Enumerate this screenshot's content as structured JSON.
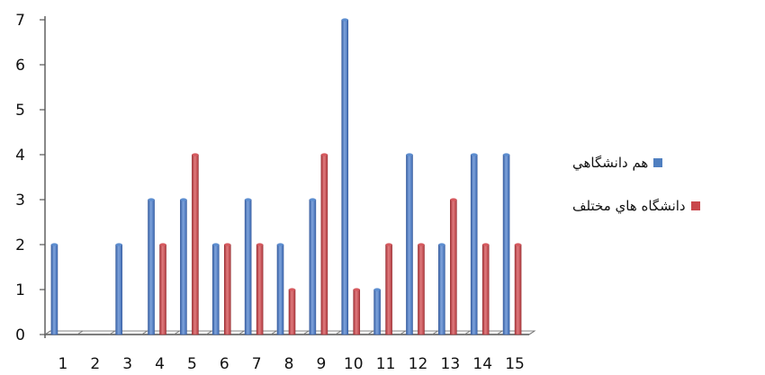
{
  "chart_data": {
    "type": "bar",
    "categories": [
      "1",
      "2",
      "3",
      "4",
      "5",
      "6",
      "7",
      "8",
      "9",
      "10",
      "11",
      "12",
      "13",
      "14",
      "15"
    ],
    "series": [
      {
        "name": "هم دانشگاهي",
        "color": "#4f7fc0",
        "values": [
          2,
          0,
          2,
          3,
          3,
          2,
          3,
          2,
          3,
          7,
          1,
          4,
          2,
          4,
          4
        ]
      },
      {
        "name": "دانشگاه هاي مختلف",
        "color": "#c9474c",
        "values": [
          0,
          0,
          0,
          2,
          4,
          2,
          2,
          1,
          4,
          1,
          2,
          2,
          3,
          2,
          2
        ]
      }
    ],
    "y_ticks": [
      "0",
      "1",
      "2",
      "3",
      "4",
      "5",
      "6",
      "7"
    ],
    "ylim": [
      0,
      7
    ],
    "grid": false,
    "legend_position": "right",
    "title": "",
    "xlabel": "",
    "ylabel": ""
  }
}
